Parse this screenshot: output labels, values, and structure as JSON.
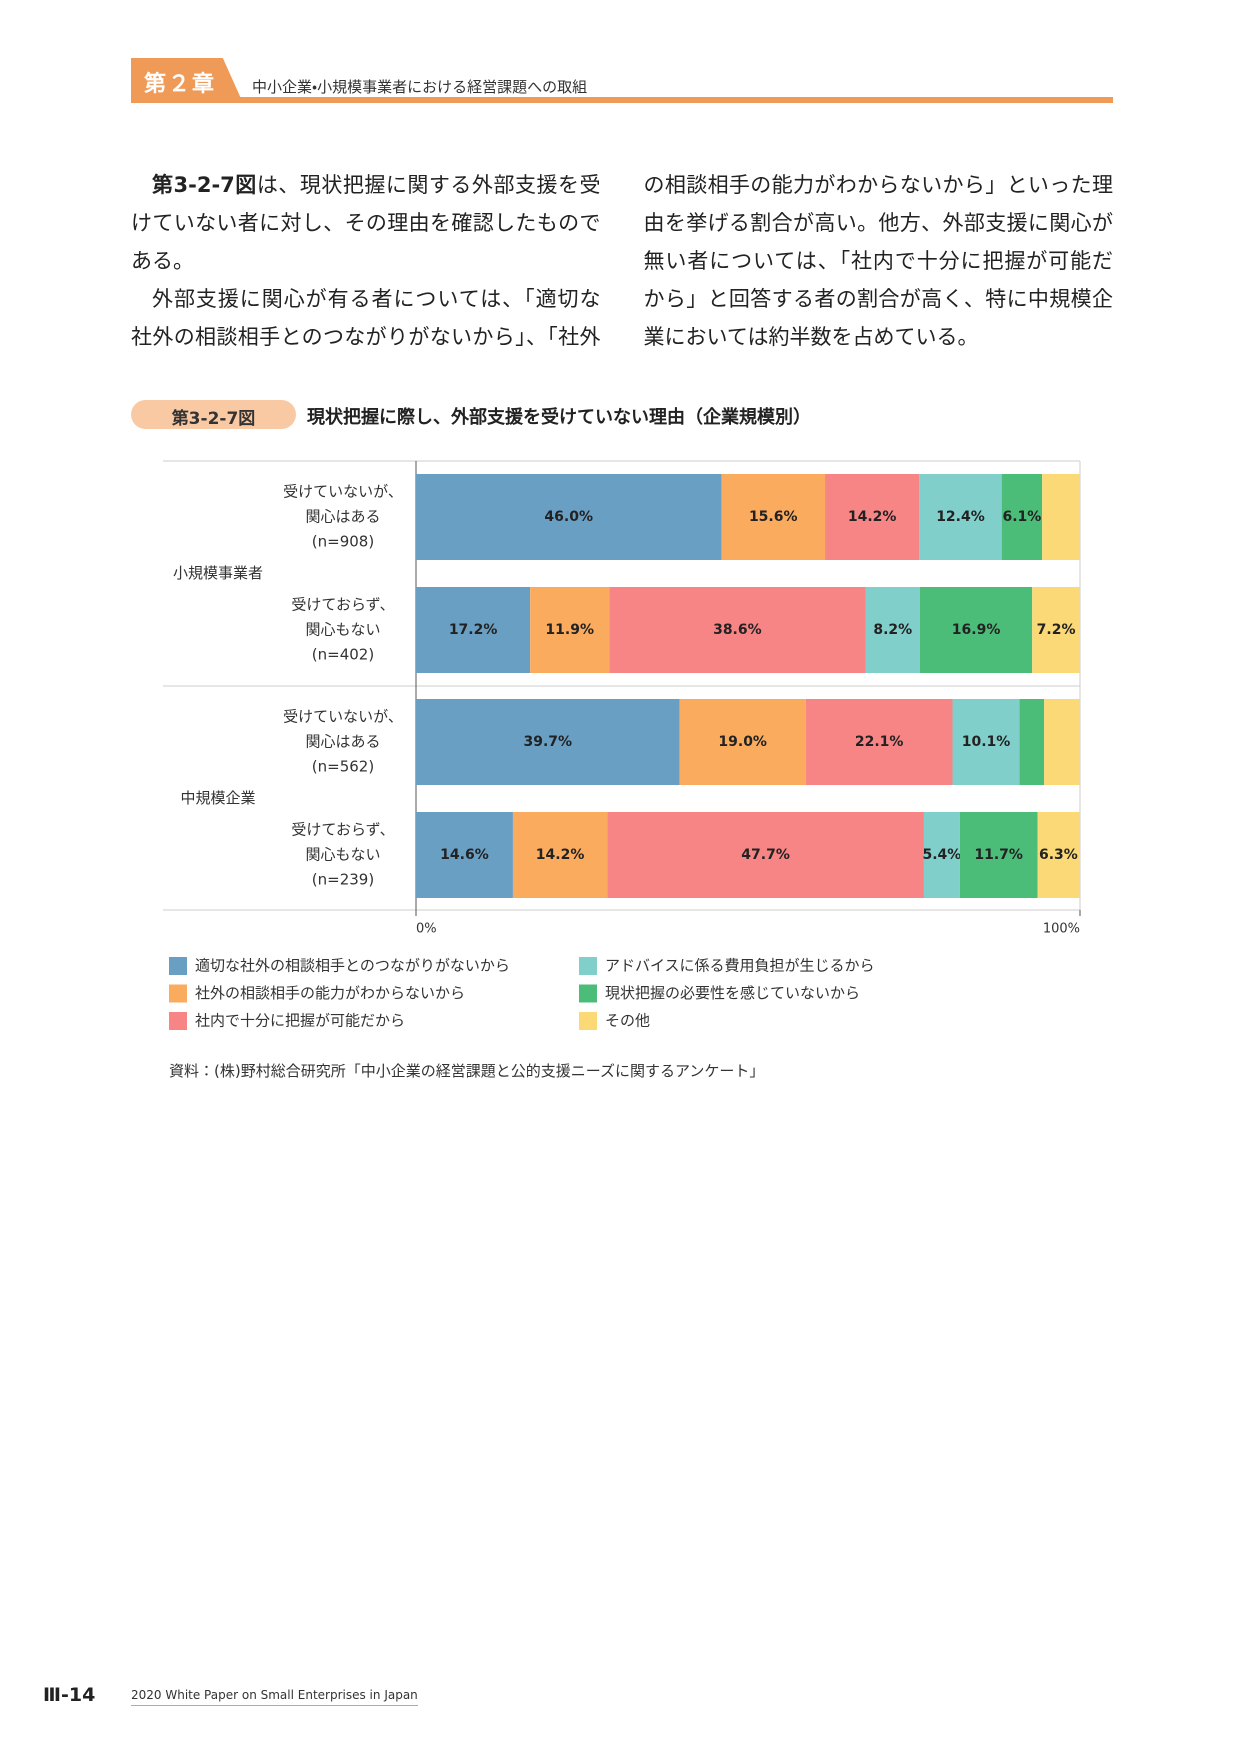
{
  "header": {
    "chapter": "第２章",
    "title": "中小企業・小規模事業者における経営課題への取組"
  },
  "body": {
    "paragraphs": [
      {
        "lead": "第3-2-7図",
        "text": "は、現状把握に関する外部支援を受けていない者に対し、その理由を確認したものである。"
      },
      {
        "text": "外部支援に関心が有る者については、「適切な社外の相談相手とのつながりがないから」、「社外の相談相手の能力がわからないから」といった理由を挙げる割合が高い。他方、外部支援に関心が無い者については、「社内で十分に把握が可能だから」と回答する者の割合が高く、特に中規模企業においては約半数を占めている。"
      }
    ]
  },
  "figure": {
    "number": "第3-2-7図",
    "title": "現状把握に際し、外部支援を受けていない理由（企業規模別）"
  },
  "chart_data": {
    "type": "stacked_bar_horizontal",
    "groups": [
      "小規模事業者",
      "中規模企業"
    ],
    "categories": [
      [
        "受けていないが、",
        "関心はある",
        "(n=908)"
      ],
      [
        "受けておらず、",
        "関心もない",
        "(n=402)"
      ],
      [
        "受けていないが、",
        "関心はある",
        "(n=562)"
      ],
      [
        "受けておらず、",
        "関心もない",
        "(n=239)"
      ]
    ],
    "series": [
      {
        "name": "適切な社外の相談相手とのつながりがないから",
        "color": "#6a9fc4",
        "values": [
          46.0,
          17.2,
          39.7,
          14.6
        ],
        "value_labels": [
          "46.0%",
          "17.2%",
          "39.7%",
          "14.6%"
        ]
      },
      {
        "name": "社外の相談相手の能力がわからないから",
        "color": "#fbab5e",
        "values": [
          15.6,
          11.9,
          19.0,
          14.2
        ],
        "value_labels": [
          "15.6%",
          "11.9%",
          "19.0%",
          "14.2%"
        ]
      },
      {
        "name": "社内で十分に把握が可能だから",
        "color": "#f88585",
        "values": [
          14.2,
          38.6,
          22.1,
          47.7
        ],
        "value_labels": [
          "14.2%",
          "38.6%",
          "22.1%",
          "47.7%"
        ]
      },
      {
        "name": "アドバイスに係る費用負担が生じるから",
        "color": "#80cfcb",
        "values": [
          12.4,
          8.2,
          10.1,
          5.4
        ],
        "value_labels": [
          "12.4%",
          "8.2%",
          "10.1%",
          "5.4%"
        ]
      },
      {
        "name": "現状把握の必要性を感じていないから",
        "color": "#4cbd79",
        "values": [
          6.1,
          16.9,
          3.7,
          11.7
        ],
        "value_labels": [
          "6.1%",
          "16.9%",
          null,
          "11.7%"
        ]
      },
      {
        "name": "その他",
        "color": "#fad976",
        "values": [
          5.7,
          7.2,
          5.4,
          6.3
        ],
        "value_labels": [
          null,
          "7.2%",
          null,
          "6.3%"
        ]
      }
    ],
    "xlim": [
      0,
      100
    ],
    "xticks": [
      {
        "value": 0,
        "label": "0%"
      },
      {
        "value": 100,
        "label": "100%"
      }
    ]
  },
  "source": "資料：(株)野村総合研究所「中小企業の経営課題と公的支援ニーズに関するアンケート」",
  "footer": {
    "page": "Ⅲ-14",
    "title": "2020 White Paper on Small Enterprises in Japan"
  }
}
